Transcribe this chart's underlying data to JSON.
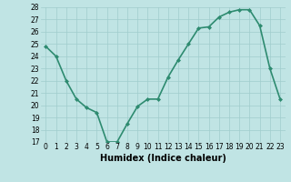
{
  "x": [
    0,
    1,
    2,
    3,
    4,
    5,
    6,
    7,
    8,
    9,
    10,
    11,
    12,
    13,
    14,
    15,
    16,
    17,
    18,
    19,
    20,
    21,
    22,
    23
  ],
  "y": [
    24.8,
    24.0,
    22.0,
    20.5,
    19.8,
    19.4,
    17.0,
    17.0,
    18.5,
    19.9,
    20.5,
    20.5,
    22.3,
    23.7,
    25.0,
    26.3,
    26.4,
    27.2,
    27.6,
    27.8,
    27.8,
    26.5,
    23.0,
    20.5
  ],
  "xlim": [
    -0.5,
    23.5
  ],
  "ylim": [
    17,
    28
  ],
  "yticks": [
    17,
    18,
    19,
    20,
    21,
    22,
    23,
    24,
    25,
    26,
    27,
    28
  ],
  "xticks": [
    0,
    1,
    2,
    3,
    4,
    5,
    6,
    7,
    8,
    9,
    10,
    11,
    12,
    13,
    14,
    15,
    16,
    17,
    18,
    19,
    20,
    21,
    22,
    23
  ],
  "xlabel": "Humidex (Indice chaleur)",
  "line_color": "#2e8b70",
  "marker_color": "#2e8b70",
  "bg_color": "#c0e4e4",
  "grid_color": "#a0cccc",
  "marker": "D",
  "marker_size": 2.0,
  "line_width": 1.2,
  "tick_fontsize": 5.5,
  "xlabel_fontsize": 7.0
}
